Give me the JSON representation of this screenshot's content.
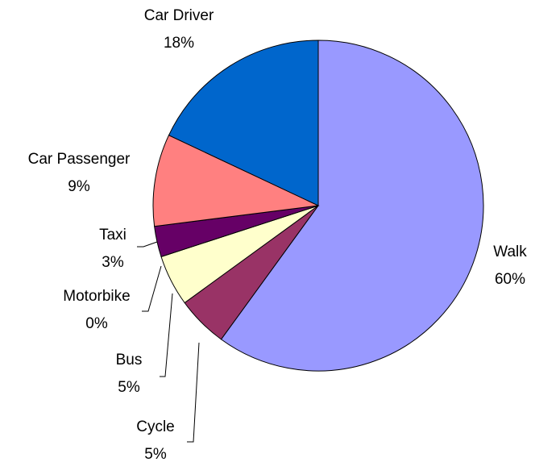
{
  "chart_data": {
    "type": "pie",
    "categories": [
      "Walk",
      "Cycle",
      "Bus",
      "Motorbike",
      "Taxi",
      "Car Passenger",
      "Car Driver"
    ],
    "values": [
      60,
      5,
      5,
      0,
      3,
      9,
      18
    ],
    "value_labels": [
      "60%",
      "5%",
      "5%",
      "0%",
      "3%",
      "9%",
      "18%"
    ],
    "colors": [
      "#9999ff",
      "#993366",
      "#ffffcc",
      null,
      "#660066",
      "#ff8080",
      "#0066cc"
    ]
  }
}
